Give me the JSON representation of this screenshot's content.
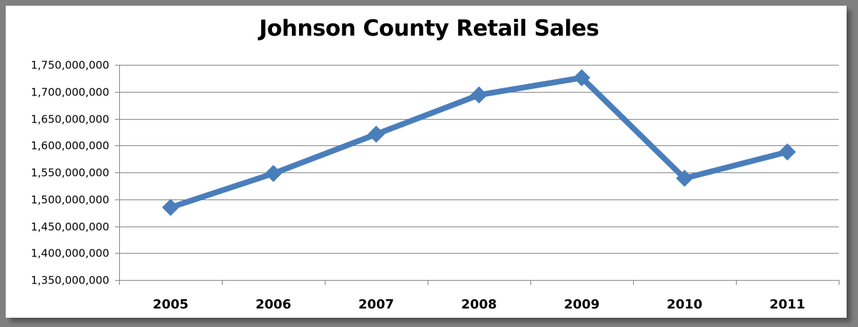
{
  "chart_data": {
    "type": "line",
    "title": "Johnson County Retail Sales",
    "xlabel": "",
    "ylabel": "",
    "categories": [
      "2005",
      "2006",
      "2007",
      "2008",
      "2009",
      "2010",
      "2011"
    ],
    "series": [
      {
        "name": "Retail Sales",
        "color": "#4a7ebb",
        "marker": "diamond",
        "values": [
          1485000000,
          1548000000,
          1621000000,
          1694000000,
          1726000000,
          1539000000,
          1588000000
        ]
      }
    ],
    "ylim": [
      1350000000,
      1750000000
    ],
    "y_ticks": [
      "1,350,000,000",
      "1,400,000,000",
      "1,450,000,000",
      "1,500,000,000",
      "1,550,000,000",
      "1,600,000,000",
      "1,650,000,000",
      "1,700,000,000",
      "1,750,000,000"
    ],
    "grid": true,
    "legend": "none"
  }
}
